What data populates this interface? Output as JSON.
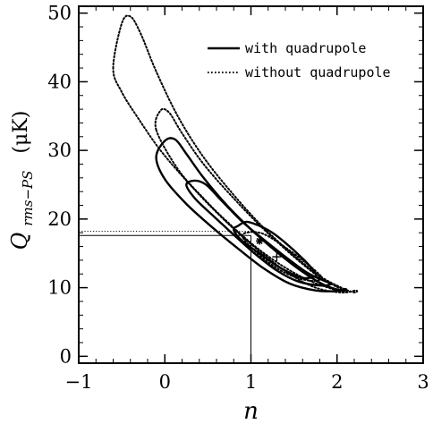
{
  "chart_data": {
    "type": "contour",
    "xlabel": "n",
    "ylabel": {
      "symbol": "Q",
      "subscript": "rms−PS",
      "units": "(μK)"
    },
    "xlim": [
      -1,
      3
    ],
    "ylim": [
      -1,
      51
    ],
    "xticks": [
      "−1",
      "0",
      "1",
      "2",
      "3"
    ],
    "xtick_values": [
      -1,
      0,
      1,
      2,
      3
    ],
    "yticks": [
      "0",
      "10",
      "20",
      "30",
      "40",
      "50"
    ],
    "ytick_values": [
      0,
      10,
      20,
      30,
      40,
      50
    ],
    "legend": {
      "placement": "top-right",
      "entries": [
        {
          "label": "with quadrupole",
          "style": "solid"
        },
        {
          "label": "without quadrupole",
          "style": "dotted"
        }
      ]
    },
    "series": [
      {
        "name": "with quadrupole",
        "style": "solid",
        "best_fit": [
          1.1,
          16.8
        ],
        "marker": "*",
        "reference_lines": {
          "n": 1.0,
          "Q": 17.6
        },
        "contours": [
          [
            [
              0.8,
              18.4
            ],
            [
              0.85,
              19.0
            ],
            [
              0.95,
              19.6
            ],
            [
              1.1,
              19.0
            ],
            [
              1.25,
              18.0
            ],
            [
              1.45,
              16.0
            ],
            [
              1.62,
              14.0
            ],
            [
              1.72,
              12.6
            ],
            [
              1.75,
              11.7
            ],
            [
              1.62,
              11.4
            ],
            [
              1.48,
              12.0
            ],
            [
              1.3,
              13.2
            ],
            [
              1.12,
              14.8
            ],
            [
              0.9,
              16.8
            ]
          ],
          [
            [
              0.25,
              25.0
            ],
            [
              0.35,
              25.6
            ],
            [
              0.48,
              25.0
            ],
            [
              0.65,
              22.8
            ],
            [
              0.9,
              19.6
            ],
            [
              1.15,
              17.0
            ],
            [
              1.4,
              14.5
            ],
            [
              1.65,
              12.2
            ],
            [
              1.85,
              11.0
            ],
            [
              1.93,
              10.6
            ],
            [
              1.82,
              10.3
            ],
            [
              1.55,
              10.9
            ],
            [
              1.3,
              12.5
            ],
            [
              1.05,
              14.9
            ],
            [
              0.8,
              17.7
            ],
            [
              0.55,
              20.6
            ],
            [
              0.35,
              23.0
            ]
          ],
          [
            [
              -0.1,
              29.0
            ],
            [
              0.0,
              31.4
            ],
            [
              0.12,
              31.6
            ],
            [
              0.25,
              29.5
            ],
            [
              0.45,
              26.0
            ],
            [
              0.72,
              22.0
            ],
            [
              1.0,
              18.5
            ],
            [
              1.3,
              15.2
            ],
            [
              1.6,
              12.3
            ],
            [
              1.85,
              10.4
            ],
            [
              2.05,
              9.6
            ],
            [
              2.1,
              9.8
            ],
            [
              1.98,
              9.5
            ],
            [
              1.75,
              9.6
            ],
            [
              1.45,
              10.6
            ],
            [
              1.15,
              12.8
            ],
            [
              0.85,
              15.7
            ],
            [
              0.55,
              18.8
            ],
            [
              0.25,
              22.2
            ],
            [
              0.0,
              25.8
            ]
          ]
        ]
      },
      {
        "name": "without quadrupole",
        "style": "dotted",
        "best_fit": [
          1.3,
          14.5
        ],
        "marker": "+",
        "reference_lines": {
          "n": 1.0,
          "Q": 18.2
        },
        "contours": [
          [
            [
              0.9,
              17.5
            ],
            [
              1.0,
              18.1
            ],
            [
              1.15,
              17.8
            ],
            [
              1.35,
              16.3
            ],
            [
              1.6,
              14.0
            ],
            [
              1.78,
              12.1
            ],
            [
              1.82,
              11.3
            ],
            [
              1.7,
              11.0
            ],
            [
              1.5,
              11.6
            ],
            [
              1.28,
              13.0
            ],
            [
              1.05,
              15.3
            ]
          ],
          [
            [
              -0.1,
              33.0
            ],
            [
              -0.05,
              35.8
            ],
            [
              0.05,
              35.5
            ],
            [
              0.2,
              32.5
            ],
            [
              0.45,
              28.0
            ],
            [
              0.8,
              23.0
            ],
            [
              1.15,
              18.5
            ],
            [
              1.5,
              14.5
            ],
            [
              1.8,
              11.5
            ],
            [
              2.05,
              9.8
            ],
            [
              2.12,
              9.5
            ],
            [
              1.95,
              9.8
            ],
            [
              1.65,
              11.2
            ],
            [
              1.35,
              13.3
            ],
            [
              1.05,
              16.0
            ],
            [
              0.75,
              19.3
            ],
            [
              0.45,
              23.0
            ],
            [
              0.15,
              27.3
            ]
          ],
          [
            [
              -0.6,
              42.0
            ],
            [
              -0.5,
              48.5
            ],
            [
              -0.4,
              49.5
            ],
            [
              -0.28,
              47.0
            ],
            [
              -0.1,
              41.5
            ],
            [
              0.15,
              35.0
            ],
            [
              0.45,
              29.0
            ],
            [
              0.8,
              23.5
            ],
            [
              1.15,
              18.7
            ],
            [
              1.5,
              14.7
            ],
            [
              1.8,
              11.7
            ],
            [
              2.05,
              10.0
            ],
            [
              2.2,
              9.3
            ],
            [
              2.22,
              9.6
            ],
            [
              2.05,
              9.3
            ],
            [
              1.75,
              10.0
            ],
            [
              1.45,
              12.0
            ],
            [
              1.15,
              14.8
            ],
            [
              0.85,
              18.0
            ],
            [
              0.55,
              21.6
            ],
            [
              0.25,
              25.6
            ],
            [
              -0.05,
              30.0
            ],
            [
              -0.3,
              34.5
            ],
            [
              -0.5,
              38.5
            ]
          ]
        ]
      }
    ]
  }
}
